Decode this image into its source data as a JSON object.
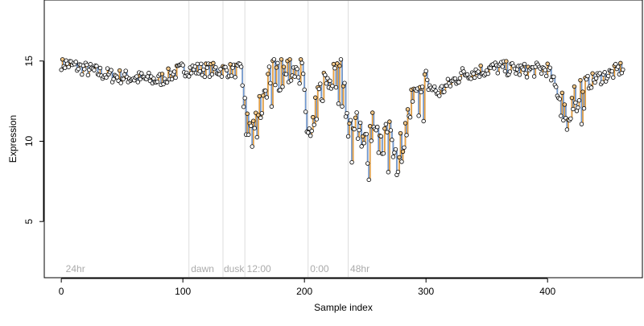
{
  "chart_data": {
    "type": "line",
    "title": "",
    "xlabel": "Sample index",
    "ylabel": "Expression",
    "xlim": [
      -14,
      478
    ],
    "ylim": [
      1.5,
      18.8
    ],
    "x_ticks": [
      0,
      100,
      200,
      300,
      400
    ],
    "y_ticks": [
      5,
      10,
      15
    ],
    "grid": false,
    "colors": {
      "step_line": "#a6a6a6",
      "down_segment": "#6f9ad6",
      "up_segment": "#f2a33a",
      "point_fill": "#ffffff",
      "point_stroke": "#000000",
      "point_up_fill": "#f5c98a",
      "vline": "#dddddd",
      "annotation_text": "#aaaaaa"
    },
    "vlines": [
      105,
      133,
      151,
      203,
      236
    ],
    "annotations": [
      {
        "x": 3,
        "text": "24hr"
      },
      {
        "x": 106,
        "text": "dawn"
      },
      {
        "x": 133,
        "text": "dusk"
      },
      {
        "x": 152,
        "text": "12:00"
      },
      {
        "x": 204,
        "text": "0:00"
      },
      {
        "x": 237,
        "text": "48hr"
      }
    ],
    "series": [
      {
        "x": [
          0,
          40,
          80,
          100,
          148,
          152,
          158,
          162,
          166,
          170,
          176,
          182,
          190,
          198,
          202,
          206,
          210,
          216,
          224,
          232,
          236,
          240,
          246,
          252,
          258,
          264,
          270,
          276,
          282,
          288,
          294,
          300,
          310,
          330,
          360,
          380,
          400,
          412,
          418,
          426,
          440,
          452,
          462
        ],
        "y": [
          14.9,
          14.1,
          13.8,
          14.5,
          14.4,
          11.0,
          10.2,
          11.5,
          12.8,
          14.1,
          14.4,
          14.2,
          14.6,
          14.3,
          10.8,
          9.8,
          12.3,
          13.6,
          14.1,
          14.5,
          10.2,
          11.4,
          10.8,
          9.3,
          11.8,
          9.2,
          10.9,
          9.0,
          10.2,
          12.4,
          12.9,
          13.6,
          13.0,
          14.2,
          14.6,
          14.4,
          14.5,
          12.4,
          11.3,
          13.4,
          13.9,
          14.2,
          14.6
        ]
      }
    ]
  }
}
